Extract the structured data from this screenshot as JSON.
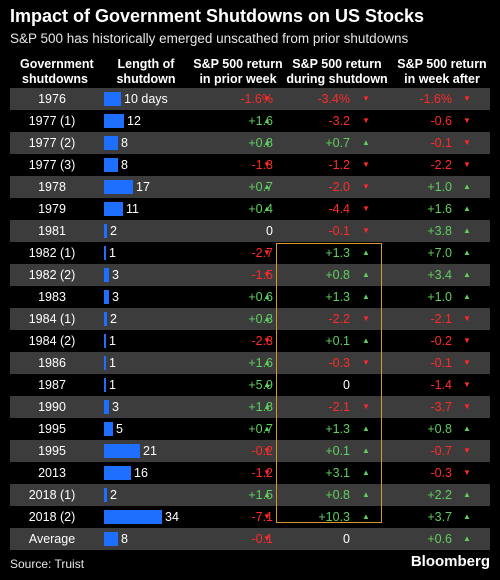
{
  "title": "Impact of Government Shutdowns on US Stocks",
  "subtitle": "S&P 500 has historically emerged unscathed from prior shutdowns",
  "source": "Source: Truist",
  "brand": "Bloomberg",
  "colors": {
    "positive": "#5fcf5f",
    "negative": "#ff2a2a",
    "bar": "#1f6fff",
    "highlight": "#d9982b"
  },
  "arrows": {
    "up": "▲",
    "down": "▼"
  },
  "chart_data": {
    "type": "table",
    "columns": [
      [
        "Government",
        "shutdowns"
      ],
      [
        "Length of",
        "shutdown"
      ],
      [
        "S&P 500 return",
        "in prior week"
      ],
      [
        "S&P 500 return",
        "during shutdown"
      ],
      [
        "S&P 500 return",
        "in week after"
      ]
    ],
    "bar_max_days": 34,
    "rows": [
      {
        "label": "1976",
        "days": 10,
        "days_label": "10 days",
        "prior": "-1.6%",
        "during": "-3.4%",
        "after": "-1.6%"
      },
      {
        "label": "1977 (1)",
        "days": 12,
        "days_label": "12",
        "prior": "+1.6",
        "during": "-3.2",
        "after": "-0.6"
      },
      {
        "label": "1977 (2)",
        "days": 8,
        "days_label": "8",
        "prior": "+0.8",
        "during": "+0.7",
        "after": "-0.1"
      },
      {
        "label": "1977 (3)",
        "days": 8,
        "days_label": "8",
        "prior": "-1.3",
        "during": "-1.2",
        "after": "-2.2"
      },
      {
        "label": "1978",
        "days": 17,
        "days_label": "17",
        "prior": "+0.7",
        "during": "-2.0",
        "after": "+1.0"
      },
      {
        "label": "1979",
        "days": 11,
        "days_label": "11",
        "prior": "+0.4",
        "during": "-4.4",
        "after": "+1.6"
      },
      {
        "label": "1981",
        "days": 2,
        "days_label": "2",
        "prior": "0",
        "during": "-0.1",
        "after": "+3.8"
      },
      {
        "label": "1982 (1)",
        "days": 1,
        "days_label": "1",
        "prior": "-2.7",
        "during": "+1.3",
        "after": "+7.0"
      },
      {
        "label": "1982 (2)",
        "days": 3,
        "days_label": "3",
        "prior": "-1.5",
        "during": "+0.8",
        "after": "+3.4"
      },
      {
        "label": "1983",
        "days": 3,
        "days_label": "3",
        "prior": "+0.6",
        "during": "+1.3",
        "after": "+1.0"
      },
      {
        "label": "1984 (1)",
        "days": 2,
        "days_label": "2",
        "prior": "+0.3",
        "during": "-2.2",
        "after": "-2.1"
      },
      {
        "label": "1984 (2)",
        "days": 1,
        "days_label": "1",
        "prior": "-2.3",
        "during": "+0.1",
        "after": "-0.2"
      },
      {
        "label": "1986",
        "days": 1,
        "days_label": "1",
        "prior": "+1.6",
        "during": "-0.3",
        "after": "-0.1"
      },
      {
        "label": "1987",
        "days": 1,
        "days_label": "1",
        "prior": "+5.9",
        "during": "0",
        "after": "-1.4"
      },
      {
        "label": "1990",
        "days": 3,
        "days_label": "3",
        "prior": "+1.8",
        "during": "-2.1",
        "after": "-3.7"
      },
      {
        "label": "1995",
        "days": 5,
        "days_label": "5",
        "prior": "+0.7",
        "during": "+1.3",
        "after": "+0.8"
      },
      {
        "label": "1995",
        "days": 21,
        "days_label": "21",
        "prior": "-0.2",
        "during": "+0.1",
        "after": "-0.7"
      },
      {
        "label": "2013",
        "days": 16,
        "days_label": "16",
        "prior": "-1.2",
        "during": "+3.1",
        "after": "-0.3"
      },
      {
        "label": "2018 (1)",
        "days": 2,
        "days_label": "2",
        "prior": "+1.5",
        "during": "+0.8",
        "after": "+2.2"
      },
      {
        "label": "2018 (2)",
        "days": 34,
        "days_label": "34",
        "prior": "-7.1",
        "during": "+10.3",
        "after": "+3.7"
      },
      {
        "label": "Average",
        "days": 8,
        "days_label": "8",
        "prior": "-0.1",
        "during": "0",
        "after": "+0.6"
      }
    ]
  }
}
